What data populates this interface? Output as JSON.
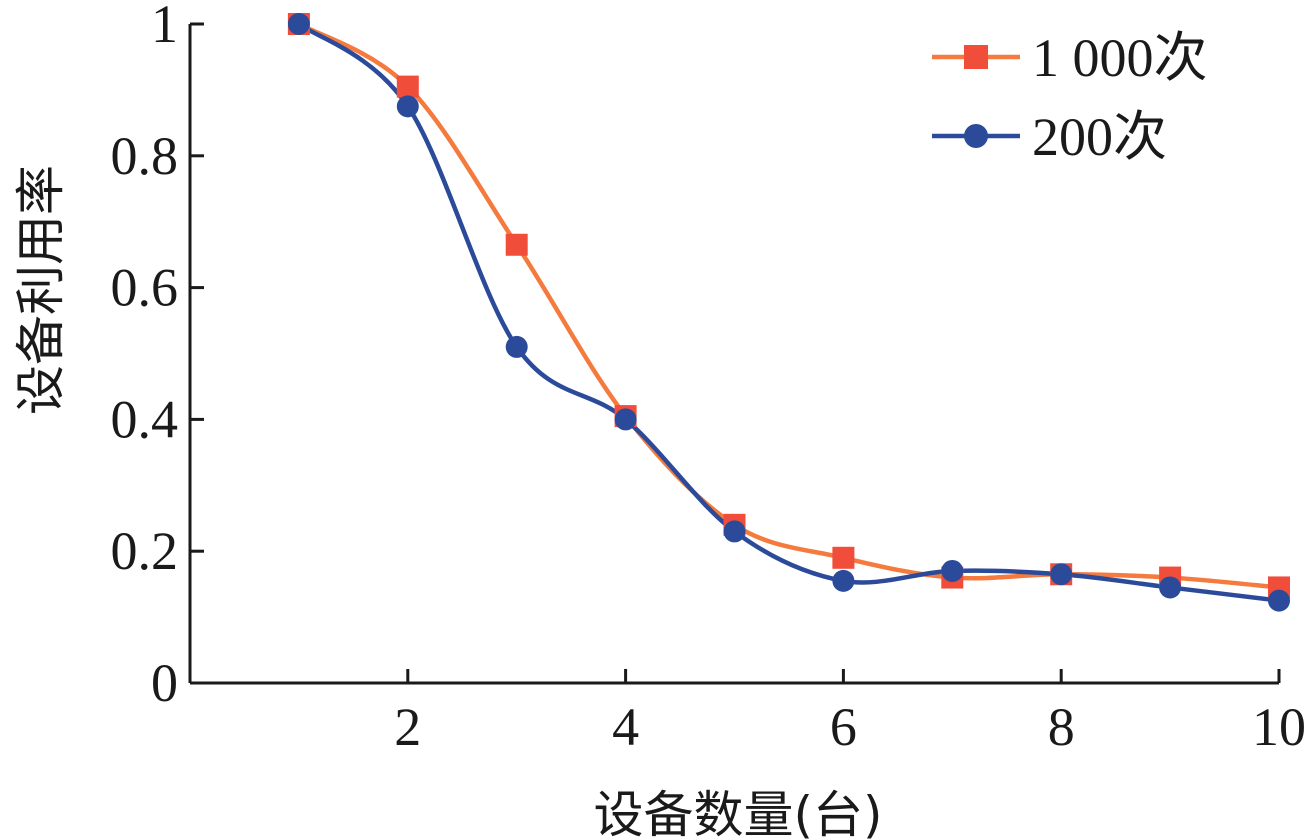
{
  "chart_data": {
    "type": "line",
    "title": "",
    "xlabel": "设备数量(台)",
    "ylabel": "设备利用率",
    "x": [
      1,
      2,
      3,
      4,
      5,
      6,
      7,
      8,
      9,
      10
    ],
    "xticks": [
      2,
      4,
      6,
      8,
      10
    ],
    "yticks": [
      0,
      0.2,
      0.4,
      0.6,
      0.8,
      1
    ],
    "ytick_labels": [
      "0",
      "0.2",
      "0.4",
      "0.6",
      "0.8",
      "1"
    ],
    "xlim": [
      0,
      10
    ],
    "ylim": [
      0,
      1
    ],
    "grid": false,
    "legend_position": "top-right",
    "series": [
      {
        "name": "1 000次",
        "marker": "square",
        "color": "#f04e3a",
        "line_color": "#f47a3d",
        "values": [
          1.0,
          0.905,
          0.665,
          0.405,
          0.24,
          0.19,
          0.16,
          0.165,
          0.16,
          0.145
        ]
      },
      {
        "name": "200次",
        "marker": "circle",
        "color": "#2b4a9a",
        "line_color": "#2b4a9a",
        "values": [
          1.0,
          0.875,
          0.51,
          0.4,
          0.23,
          0.155,
          0.17,
          0.165,
          0.145,
          0.125
        ]
      }
    ]
  }
}
